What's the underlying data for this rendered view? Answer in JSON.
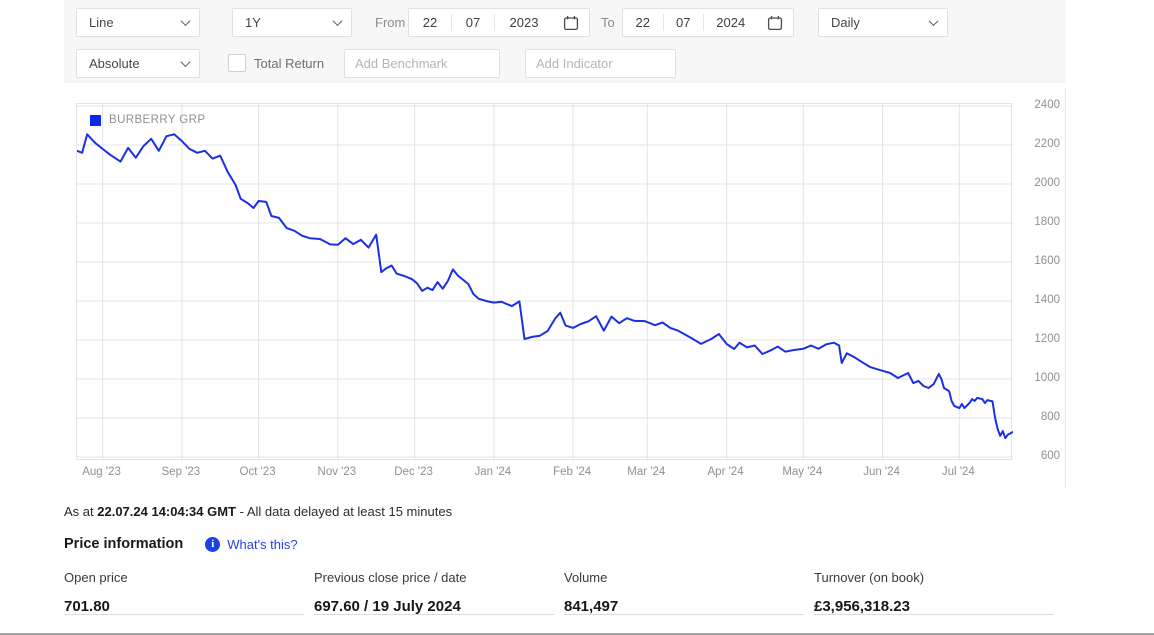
{
  "toolbar": {
    "chart_type": {
      "value": "Line"
    },
    "range": {
      "value": "1Y"
    },
    "from_label": "From",
    "from_date": {
      "day": "22",
      "month": "07",
      "year": "2023"
    },
    "to_label": "To",
    "to_date": {
      "day": "22",
      "month": "07",
      "year": "2024"
    },
    "frequency": {
      "value": "Daily"
    },
    "series_mode": {
      "value": "Absolute"
    },
    "total_return": {
      "label": "Total Return",
      "checked": false
    },
    "benchmark_placeholder": "Add Benchmark",
    "indicator_placeholder": "Add Indicator"
  },
  "chart_data": {
    "type": "line",
    "title": "",
    "legend_position": "top-left",
    "y_axis_side": "right",
    "grid": true,
    "grid_color": "#e4e4e7",
    "x_unit": "days since 2023-07-22",
    "x_range": [
      0,
      366
    ],
    "y_range": [
      600,
      2400
    ],
    "y_ticks": [
      600,
      800,
      1000,
      1200,
      1400,
      1600,
      1800,
      2000,
      2200,
      2400
    ],
    "x_ticks": [
      {
        "label": "Aug '23",
        "day": 10
      },
      {
        "label": "Sep '23",
        "day": 41
      },
      {
        "label": "Oct '23",
        "day": 71
      },
      {
        "label": "Nov '23",
        "day": 102
      },
      {
        "label": "Dec '23",
        "day": 132
      },
      {
        "label": "Jan '24",
        "day": 163
      },
      {
        "label": "Feb '24",
        "day": 194
      },
      {
        "label": "Mar '24",
        "day": 223
      },
      {
        "label": "Apr '24",
        "day": 254
      },
      {
        "label": "May '24",
        "day": 284
      },
      {
        "label": "Jun '24",
        "day": 315
      },
      {
        "label": "Jul '24",
        "day": 345
      }
    ],
    "series": [
      {
        "name": "BURBERRY GRP",
        "color": "#1b2fe3",
        "points": [
          [
            0,
            2170
          ],
          [
            2,
            2160
          ],
          [
            4,
            2255
          ],
          [
            7,
            2212
          ],
          [
            10,
            2180
          ],
          [
            13,
            2150
          ],
          [
            17,
            2115
          ],
          [
            20,
            2185
          ],
          [
            23,
            2135
          ],
          [
            26,
            2195
          ],
          [
            29,
            2232
          ],
          [
            32,
            2170
          ],
          [
            35,
            2245
          ],
          [
            38,
            2255
          ],
          [
            41,
            2220
          ],
          [
            44,
            2180
          ],
          [
            47,
            2160
          ],
          [
            50,
            2170
          ],
          [
            53,
            2130
          ],
          [
            56,
            2145
          ],
          [
            59,
            2060
          ],
          [
            62,
            1995
          ],
          [
            64,
            1924
          ],
          [
            67,
            1900
          ],
          [
            69,
            1877
          ],
          [
            71,
            1913
          ],
          [
            74,
            1908
          ],
          [
            76,
            1836
          ],
          [
            79,
            1826
          ],
          [
            82,
            1774
          ],
          [
            85,
            1760
          ],
          [
            88,
            1735
          ],
          [
            91,
            1722
          ],
          [
            95,
            1718
          ],
          [
            99,
            1690
          ],
          [
            102,
            1688
          ],
          [
            105,
            1722
          ],
          [
            108,
            1692
          ],
          [
            111,
            1714
          ],
          [
            114,
            1674
          ],
          [
            117,
            1740
          ],
          [
            119,
            1548
          ],
          [
            121,
            1568
          ],
          [
            123,
            1582
          ],
          [
            125,
            1540
          ],
          [
            128,
            1528
          ],
          [
            131,
            1512
          ],
          [
            133,
            1490
          ],
          [
            135,
            1452
          ],
          [
            137,
            1468
          ],
          [
            139,
            1456
          ],
          [
            141,
            1497
          ],
          [
            143,
            1463
          ],
          [
            145,
            1502
          ],
          [
            147,
            1562
          ],
          [
            149,
            1530
          ],
          [
            151,
            1508
          ],
          [
            153,
            1487
          ],
          [
            155,
            1436
          ],
          [
            157,
            1412
          ],
          [
            160,
            1400
          ],
          [
            163,
            1392
          ],
          [
            166,
            1396
          ],
          [
            170,
            1374
          ],
          [
            173,
            1398
          ],
          [
            175,
            1205
          ],
          [
            178,
            1216
          ],
          [
            181,
            1222
          ],
          [
            184,
            1246
          ],
          [
            187,
            1310
          ],
          [
            189,
            1340
          ],
          [
            191,
            1275
          ],
          [
            194,
            1262
          ],
          [
            197,
            1282
          ],
          [
            200,
            1296
          ],
          [
            203,
            1322
          ],
          [
            206,
            1248
          ],
          [
            209,
            1320
          ],
          [
            212,
            1286
          ],
          [
            215,
            1312
          ],
          [
            218,
            1298
          ],
          [
            222,
            1297
          ],
          [
            226,
            1276
          ],
          [
            229,
            1290
          ],
          [
            232,
            1262
          ],
          [
            235,
            1248
          ],
          [
            240,
            1212
          ],
          [
            244,
            1180
          ],
          [
            248,
            1205
          ],
          [
            251,
            1231
          ],
          [
            254,
            1180
          ],
          [
            257,
            1154
          ],
          [
            259,
            1186
          ],
          [
            262,
            1162
          ],
          [
            265,
            1172
          ],
          [
            268,
            1128
          ],
          [
            271,
            1145
          ],
          [
            274,
            1166
          ],
          [
            277,
            1140
          ],
          [
            280,
            1148
          ],
          [
            284,
            1155
          ],
          [
            287,
            1172
          ],
          [
            290,
            1155
          ],
          [
            293,
            1178
          ],
          [
            296,
            1186
          ],
          [
            298,
            1172
          ],
          [
            299,
            1082
          ],
          [
            301,
            1132
          ],
          [
            304,
            1112
          ],
          [
            307,
            1086
          ],
          [
            310,
            1062
          ],
          [
            313,
            1050
          ],
          [
            315,
            1042
          ],
          [
            318,
            1031
          ],
          [
            321,
            1005
          ],
          [
            325,
            1031
          ],
          [
            327,
            979
          ],
          [
            329,
            990
          ],
          [
            331,
            964
          ],
          [
            333,
            954
          ],
          [
            335,
            974
          ],
          [
            337,
            1026
          ],
          [
            338,
            1000
          ],
          [
            339,
            954
          ],
          [
            341,
            938
          ],
          [
            342,
            887
          ],
          [
            343,
            862
          ],
          [
            345,
            851
          ],
          [
            346,
            872
          ],
          [
            347,
            851
          ],
          [
            349,
            877
          ],
          [
            350,
            897
          ],
          [
            351,
            887
          ],
          [
            352,
            903
          ],
          [
            354,
            897
          ],
          [
            355,
            877
          ],
          [
            356,
            892
          ],
          [
            358,
            885
          ],
          [
            359,
            800
          ],
          [
            360,
            743
          ],
          [
            361,
            708
          ],
          [
            362,
            733
          ],
          [
            363,
            697
          ],
          [
            364,
            715
          ],
          [
            366,
            728
          ]
        ]
      }
    ]
  },
  "legend": {
    "label": "BURBERRY GRP",
    "color": "#1026e8"
  },
  "footnote": {
    "prefix": "As at ",
    "bold": "22.07.24 14:04:34 GMT",
    "suffix": " - All data delayed at least 15 minutes"
  },
  "price_information": {
    "title": "Price information",
    "whats_this": "What's this?",
    "info_icon": "i",
    "items": [
      {
        "label": "Open price",
        "value": "701.80"
      },
      {
        "label": "Previous close price / date",
        "value": "697.60 / 19 July 2024"
      },
      {
        "label": "Volume",
        "value": "841,497"
      },
      {
        "label": "Turnover (on book)",
        "value": "£3,956,318.23"
      }
    ]
  },
  "colors": {
    "toolbar_bg": "#f7f7f8",
    "line_blue": "#1b2fe3",
    "legend_blue": "#1026e8",
    "link_blue": "#2742ee",
    "axis_text": "#8f9095",
    "grid": "#e4e4e7"
  }
}
